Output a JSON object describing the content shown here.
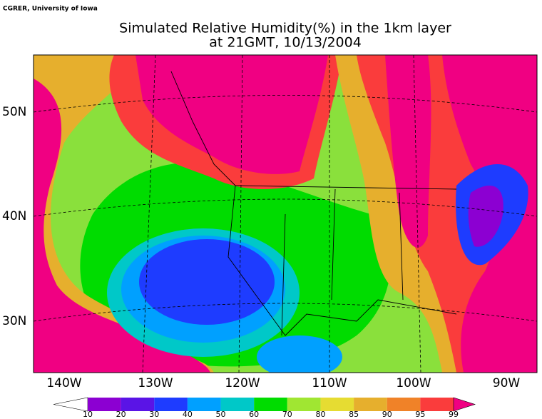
{
  "credit": "CGRER, University of Iowa",
  "title": [
    "Simulated Relative Humidity(%) in the 1km layer",
    "at 21GMT, 10/13/2004"
  ],
  "lat_labels": [
    "50N",
    "40N",
    "30N"
  ],
  "lon_labels": [
    "140W",
    "130W",
    "120W",
    "110W",
    "100W",
    "90W"
  ],
  "colorbar": {
    "labels": [
      10,
      20,
      30,
      40,
      50,
      60,
      70,
      80,
      85,
      90,
      95,
      99
    ],
    "colors": [
      "#ffffff",
      "#8c00d2",
      "#5a14e6",
      "#1e3cff",
      "#00a0ff",
      "#00c8c8",
      "#00dc00",
      "#a0e632",
      "#e6dc32",
      "#e6af2d",
      "#f08228",
      "#fa3c3c",
      "#f00082"
    ]
  }
}
